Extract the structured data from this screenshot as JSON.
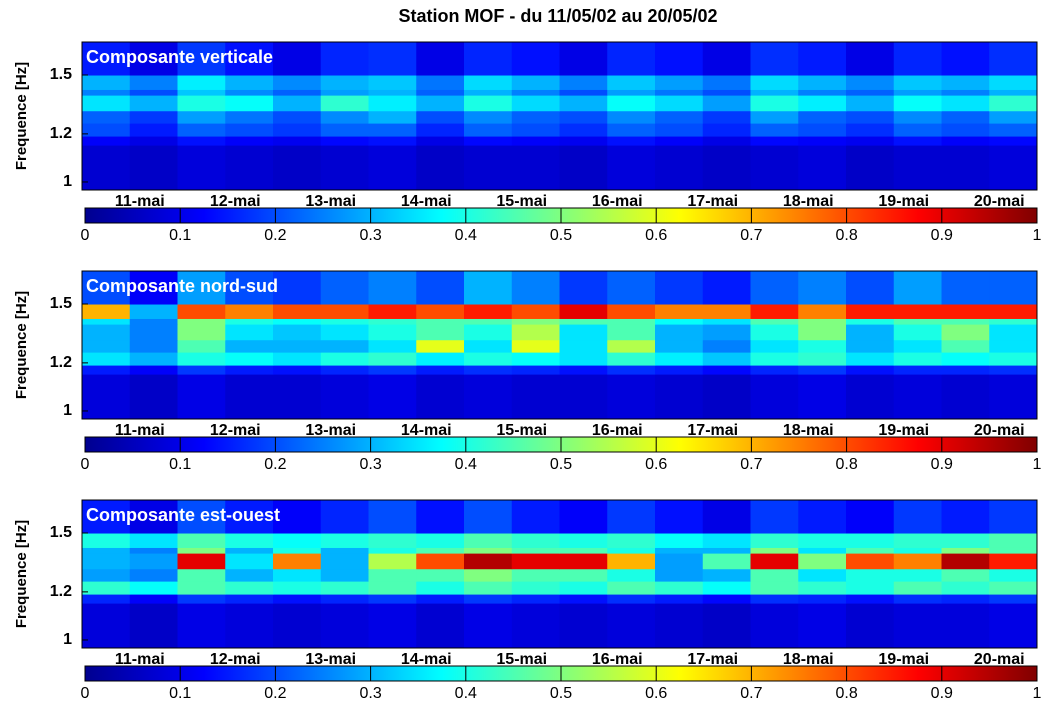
{
  "title": "Station MOF - du 11/05/02 au 20/05/02",
  "chart_data": [
    {
      "type": "heatmap",
      "title": "Composante verticale",
      "y_label": "Frequence [Hz]",
      "yscale": "log",
      "ylim": [
        0.97,
        1.7
      ],
      "yticks": [
        1,
        1.2,
        1.5
      ],
      "categories": [
        "11-mai",
        "12-mai",
        "13-mai",
        "14-mai",
        "15-mai",
        "16-mai",
        "17-mai",
        "18-mai",
        "19-mai",
        "20-mai"
      ],
      "y_bins": [
        0.97,
        1.15,
        1.19,
        1.25,
        1.31,
        1.39,
        1.42,
        1.5,
        1.7
      ],
      "colormap": "jet",
      "clim": [
        0,
        1
      ],
      "cticks": [
        0,
        0.1,
        0.2,
        0.3,
        0.4,
        0.5,
        0.6,
        0.7,
        0.8,
        0.9,
        1
      ],
      "z": [
        [
          0.08,
          0.07,
          0.09,
          0.08,
          0.07,
          0.08,
          0.09,
          0.07,
          0.08,
          0.08,
          0.07,
          0.09,
          0.08,
          0.07,
          0.08,
          0.09,
          0.07,
          0.08,
          0.08,
          0.09
        ],
        [
          0.12,
          0.1,
          0.14,
          0.12,
          0.11,
          0.13,
          0.14,
          0.1,
          0.13,
          0.12,
          0.11,
          0.14,
          0.12,
          0.1,
          0.13,
          0.12,
          0.11,
          0.14,
          0.12,
          0.13
        ],
        [
          0.2,
          0.15,
          0.22,
          0.2,
          0.18,
          0.22,
          0.22,
          0.16,
          0.22,
          0.2,
          0.17,
          0.22,
          0.2,
          0.16,
          0.22,
          0.2,
          0.17,
          0.22,
          0.2,
          0.22
        ],
        [
          0.22,
          0.18,
          0.28,
          0.24,
          0.2,
          0.26,
          0.3,
          0.2,
          0.26,
          0.22,
          0.2,
          0.26,
          0.22,
          0.18,
          0.28,
          0.22,
          0.2,
          0.26,
          0.22,
          0.28
        ],
        [
          0.35,
          0.3,
          0.4,
          0.38,
          0.3,
          0.42,
          0.36,
          0.3,
          0.4,
          0.34,
          0.3,
          0.38,
          0.34,
          0.28,
          0.4,
          0.36,
          0.3,
          0.38,
          0.35,
          0.42
        ],
        [
          0.25,
          0.2,
          0.32,
          0.26,
          0.22,
          0.28,
          0.3,
          0.22,
          0.3,
          0.25,
          0.2,
          0.28,
          0.24,
          0.2,
          0.3,
          0.25,
          0.22,
          0.28,
          0.25,
          0.3
        ],
        [
          0.3,
          0.25,
          0.36,
          0.3,
          0.26,
          0.3,
          0.32,
          0.24,
          0.34,
          0.3,
          0.25,
          0.32,
          0.28,
          0.24,
          0.34,
          0.3,
          0.26,
          0.32,
          0.3,
          0.34
        ],
        [
          0.15,
          0.1,
          0.18,
          0.14,
          0.1,
          0.16,
          0.17,
          0.1,
          0.16,
          0.14,
          0.1,
          0.16,
          0.14,
          0.1,
          0.17,
          0.15,
          0.1,
          0.16,
          0.14,
          0.17
        ]
      ]
    },
    {
      "type": "heatmap",
      "title": "Composante nord-sud",
      "y_label": "Frequence [Hz]",
      "yscale": "log",
      "ylim": [
        0.97,
        1.7
      ],
      "yticks": [
        1,
        1.2,
        1.5
      ],
      "categories": [
        "11-mai",
        "12-mai",
        "13-mai",
        "14-mai",
        "15-mai",
        "16-mai",
        "17-mai",
        "18-mai",
        "19-mai",
        "20-mai"
      ],
      "y_bins": [
        0.97,
        1.15,
        1.19,
        1.25,
        1.31,
        1.39,
        1.42,
        1.5,
        1.7
      ],
      "colormap": "jet",
      "clim": [
        0,
        1
      ],
      "cticks": [
        0,
        0.1,
        0.2,
        0.3,
        0.4,
        0.5,
        0.6,
        0.7,
        0.8,
        0.9,
        1
      ],
      "z": [
        [
          0.09,
          0.07,
          0.1,
          0.08,
          0.08,
          0.09,
          0.1,
          0.08,
          0.09,
          0.08,
          0.08,
          0.09,
          0.08,
          0.07,
          0.09,
          0.1,
          0.08,
          0.09,
          0.08,
          0.09
        ],
        [
          0.15,
          0.12,
          0.18,
          0.15,
          0.14,
          0.16,
          0.18,
          0.15,
          0.17,
          0.16,
          0.14,
          0.17,
          0.15,
          0.13,
          0.16,
          0.18,
          0.14,
          0.16,
          0.16,
          0.17
        ],
        [
          0.35,
          0.3,
          0.4,
          0.38,
          0.35,
          0.4,
          0.42,
          0.36,
          0.4,
          0.38,
          0.35,
          0.42,
          0.36,
          0.32,
          0.4,
          0.42,
          0.35,
          0.4,
          0.38,
          0.4
        ],
        [
          0.3,
          0.25,
          0.45,
          0.3,
          0.3,
          0.3,
          0.35,
          0.6,
          0.35,
          0.6,
          0.35,
          0.55,
          0.3,
          0.25,
          0.35,
          0.4,
          0.3,
          0.35,
          0.45,
          0.35
        ],
        [
          0.3,
          0.25,
          0.5,
          0.35,
          0.32,
          0.35,
          0.4,
          0.45,
          0.4,
          0.55,
          0.35,
          0.45,
          0.3,
          0.28,
          0.4,
          0.5,
          0.3,
          0.4,
          0.5,
          0.35
        ],
        [
          0.35,
          0.25,
          0.5,
          0.4,
          0.38,
          0.4,
          0.42,
          0.45,
          0.45,
          0.5,
          0.45,
          0.45,
          0.38,
          0.35,
          0.45,
          0.5,
          0.4,
          0.45,
          0.45,
          0.42
        ],
        [
          0.7,
          0.3,
          0.8,
          0.75,
          0.8,
          0.8,
          0.85,
          0.8,
          0.85,
          0.8,
          0.9,
          0.8,
          0.75,
          0.75,
          0.85,
          0.75,
          0.85,
          0.85,
          0.85,
          0.85
        ],
        [
          0.2,
          0.12,
          0.28,
          0.2,
          0.18,
          0.22,
          0.25,
          0.2,
          0.3,
          0.25,
          0.18,
          0.22,
          0.18,
          0.15,
          0.22,
          0.25,
          0.2,
          0.28,
          0.22,
          0.22
        ]
      ]
    },
    {
      "type": "heatmap",
      "title": "Composante est-ouest",
      "y_label": "Frequence [Hz]",
      "yscale": "log",
      "ylim": [
        0.97,
        1.7
      ],
      "yticks": [
        1,
        1.2,
        1.5
      ],
      "categories": [
        "11-mai",
        "12-mai",
        "13-mai",
        "14-mai",
        "15-mai",
        "16-mai",
        "17-mai",
        "18-mai",
        "19-mai",
        "20-mai"
      ],
      "y_bins": [
        0.97,
        1.15,
        1.19,
        1.25,
        1.31,
        1.39,
        1.42,
        1.5,
        1.7
      ],
      "colormap": "jet",
      "clim": [
        0,
        1
      ],
      "cticks": [
        0,
        0.1,
        0.2,
        0.3,
        0.4,
        0.5,
        0.6,
        0.7,
        0.8,
        0.9,
        1
      ],
      "z": [
        [
          0.09,
          0.07,
          0.1,
          0.09,
          0.08,
          0.09,
          0.1,
          0.08,
          0.1,
          0.09,
          0.08,
          0.09,
          0.08,
          0.07,
          0.09,
          0.1,
          0.08,
          0.09,
          0.09,
          0.1
        ],
        [
          0.16,
          0.12,
          0.18,
          0.16,
          0.14,
          0.16,
          0.18,
          0.15,
          0.18,
          0.16,
          0.14,
          0.17,
          0.15,
          0.13,
          0.17,
          0.16,
          0.14,
          0.17,
          0.16,
          0.18
        ],
        [
          0.42,
          0.38,
          0.45,
          0.42,
          0.4,
          0.42,
          0.45,
          0.4,
          0.45,
          0.42,
          0.4,
          0.45,
          0.42,
          0.38,
          0.45,
          0.42,
          0.4,
          0.45,
          0.42,
          0.45
        ],
        [
          0.28,
          0.25,
          0.45,
          0.3,
          0.35,
          0.3,
          0.45,
          0.45,
          0.5,
          0.45,
          0.45,
          0.4,
          0.28,
          0.3,
          0.45,
          0.35,
          0.4,
          0.4,
          0.45,
          0.4
        ],
        [
          0.3,
          0.28,
          0.9,
          0.35,
          0.75,
          0.3,
          0.55,
          0.8,
          0.95,
          0.9,
          0.9,
          0.7,
          0.28,
          0.45,
          0.9,
          0.5,
          0.8,
          0.75,
          0.95,
          0.85
        ],
        [
          0.3,
          0.25,
          0.5,
          0.3,
          0.4,
          0.3,
          0.4,
          0.45,
          0.5,
          0.45,
          0.45,
          0.4,
          0.3,
          0.3,
          0.5,
          0.35,
          0.45,
          0.4,
          0.5,
          0.45
        ],
        [
          0.4,
          0.35,
          0.45,
          0.4,
          0.38,
          0.4,
          0.42,
          0.4,
          0.45,
          0.42,
          0.4,
          0.42,
          0.38,
          0.35,
          0.42,
          0.4,
          0.4,
          0.42,
          0.42,
          0.45
        ],
        [
          0.15,
          0.1,
          0.2,
          0.15,
          0.12,
          0.16,
          0.2,
          0.14,
          0.2,
          0.15,
          0.12,
          0.18,
          0.14,
          0.1,
          0.18,
          0.15,
          0.12,
          0.18,
          0.15,
          0.18
        ]
      ]
    }
  ]
}
